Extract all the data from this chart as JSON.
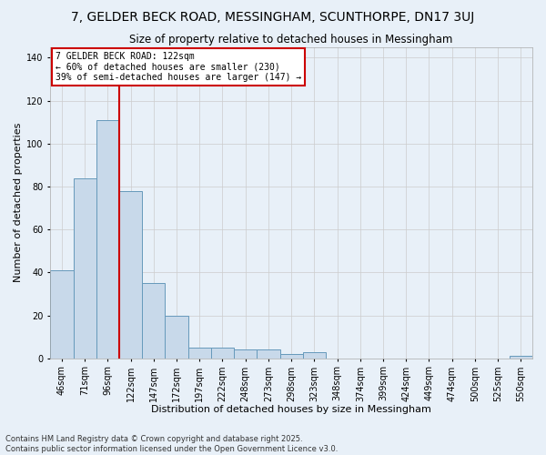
{
  "title": "7, GELDER BECK ROAD, MESSINGHAM, SCUNTHORPE, DN17 3UJ",
  "subtitle": "Size of property relative to detached houses in Messingham",
  "xlabel": "Distribution of detached houses by size in Messingham",
  "ylabel": "Number of detached properties",
  "bin_labels": [
    "46sqm",
    "71sqm",
    "96sqm",
    "122sqm",
    "147sqm",
    "172sqm",
    "197sqm",
    "222sqm",
    "248sqm",
    "273sqm",
    "298sqm",
    "323sqm",
    "348sqm",
    "374sqm",
    "399sqm",
    "424sqm",
    "449sqm",
    "474sqm",
    "500sqm",
    "525sqm",
    "550sqm"
  ],
  "bar_values": [
    41,
    84,
    111,
    78,
    35,
    20,
    5,
    5,
    4,
    4,
    2,
    3,
    0,
    0,
    0,
    0,
    0,
    0,
    0,
    0,
    1
  ],
  "bar_color": "#c8d9ea",
  "bar_edge_color": "#6699bb",
  "vline_color": "#cc0000",
  "annotation_text": "7 GELDER BECK ROAD: 122sqm\n← 60% of detached houses are smaller (230)\n39% of semi-detached houses are larger (147) →",
  "annotation_box_color": "#ffffff",
  "annotation_box_edge_color": "#cc0000",
  "ylim": [
    0,
    145
  ],
  "yticks": [
    0,
    20,
    40,
    60,
    80,
    100,
    120,
    140
  ],
  "grid_color": "#cccccc",
  "bg_color": "#e8f0f8",
  "footnote1": "Contains HM Land Registry data © Crown copyright and database right 2025.",
  "footnote2": "Contains public sector information licensed under the Open Government Licence v3.0.",
  "title_fontsize": 10,
  "subtitle_fontsize": 8.5,
  "xlabel_fontsize": 8,
  "ylabel_fontsize": 8,
  "tick_fontsize": 7,
  "annot_fontsize": 7,
  "footnote_fontsize": 6
}
